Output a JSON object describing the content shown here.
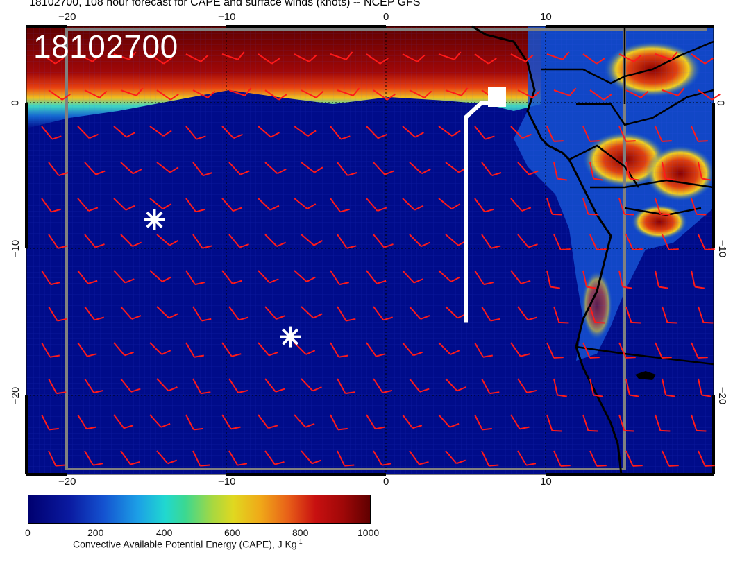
{
  "title": "18102700, 108 hour forecast for CAPE and surface winds (knots) -- NCEP GFS",
  "stamp": "18102700",
  "lon_ticks_bottom": [
    "−20",
    "−10",
    "0",
    "10"
  ],
  "lon_ticks_top": [
    "−20",
    "−10",
    "0",
    "10"
  ],
  "lat_ticks_left": [
    "0",
    "−10",
    "−20"
  ],
  "lat_ticks_right": [
    "0",
    "−10",
    "−20"
  ],
  "colorbar": {
    "ticks": [
      "0",
      "200",
      "400",
      "600",
      "800",
      "1000"
    ],
    "caption": "Convective Available Potential Energy (CAPE), J Kg",
    "caption_sup": "-1",
    "min": 0,
    "max": 1000
  },
  "markers": [
    {
      "type": "asterisk",
      "color": "#ffffff",
      "lon": -14.5,
      "lat": -8
    },
    {
      "type": "asterisk",
      "color": "#ffffff",
      "lon": -6,
      "lat": -16
    }
  ],
  "track": {
    "color": "#ffffff",
    "points": [
      [
        5,
        -15
      ],
      [
        5,
        -1
      ],
      [
        6,
        0
      ],
      [
        7,
        0
      ]
    ]
  },
  "colors": {
    "ocean": "#000c8a",
    "barb": "#ff1a1a",
    "coast": "#000000",
    "grid_box": "#808080"
  }
}
